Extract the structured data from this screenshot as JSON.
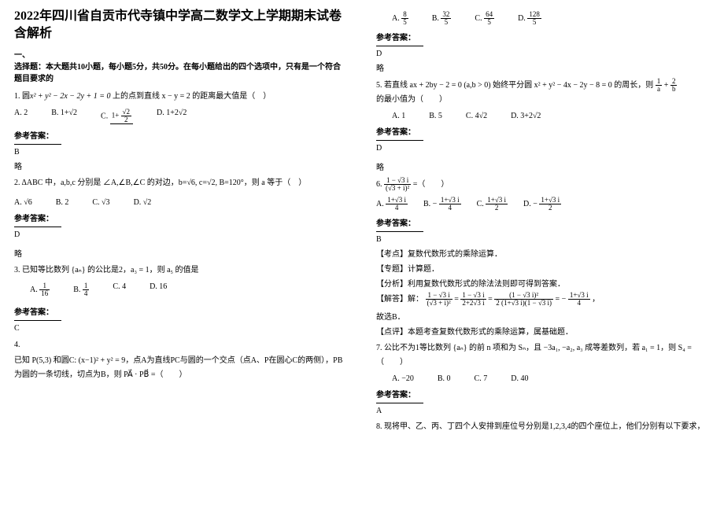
{
  "title": "2022年四川省自贡市代寺镇中学高二数学文上学期期末试卷含解析",
  "section1_head": "一、\n选择题：本大题共10小题，每小题5分，共50分。在每小题给出的四个选项中，只有是一个符合题目要求的",
  "q1": {
    "stem_pre": "1. 圆",
    "stem_eq": "x² + y² − 2x − 2y + 1 = 0",
    "stem_post": "上的点到直线 x − y = 2 的距离最大值是（　）",
    "A": "A. 2",
    "B": "B. 1+√2",
    "C_pre": "C. ",
    "C_frac_n": "1+ (√2)/2",
    "D": "D. 1+2√2"
  },
  "ans_label": "参考答案：",
  "q1_ans": "B",
  "lve": "略",
  "q2": {
    "stem": "2. ΔABC 中，a,b,c 分别是 ∠A,∠B,∠C 的对边，b=√6, c=√2, B=120°，则 a 等于（　）",
    "A": "A. √6",
    "B": "B. 2",
    "C": "C. √3",
    "D": "D. √2"
  },
  "q2_ans": "D",
  "q3": {
    "stem": "3. 已知等比数列 {aₙ} 的公比是2，a₃ = 1，则 a₅ 的值是",
    "A_n": "1",
    "A_d": "16",
    "B_n": "1",
    "B_d": "4",
    "C": "C.  4",
    "D": "D.  16"
  },
  "q3_ans": "C",
  "q4": {
    "stem": "已知 P(5,3) 和圆C: (x−1)² + y² = 9，点A为直线PC与圆的一个交点（点A、P在圆心C的两侧），PB为圆的一条切线，切点为B，则 PA⃗ · PB⃗ =（　　）"
  },
  "q4opts": {
    "A_n": "8",
    "A_d": "5",
    "B_n": "32",
    "B_d": "5",
    "C_n": "64",
    "C_d": "5",
    "D_n": "128",
    "D_d": "5"
  },
  "q4_ans": "D",
  "q5": {
    "stem_a": "5. 若直线 ax + 2by − 2 = 0 (a,b > 0) 始终平分圆 x² + y² − 4x − 2y − 8 = 0 的周长，则",
    "stem_b": "的最小值为（　　）",
    "frac1_n": "1",
    "frac1_d": "a",
    "plus": " + ",
    "frac2_n": "2",
    "frac2_d": "b",
    "A": "A.  1",
    "B": "B.  5",
    "C": "C.  4√2",
    "D": "D.  3+2√2"
  },
  "q5_ans": "D",
  "q6": {
    "stem_pre": "6. ",
    "main_n": "1 − √3 i",
    "main_d": "(√3 + i)²",
    "eq": " =（　　）",
    "A_n": "1+√3 i",
    "A_d": "4",
    "B_n": "1+√3 i",
    "B_d": "4",
    "B_sign": "− ",
    "C_n": "1+√3 i",
    "C_d": "2",
    "D_n": "1+√3 i",
    "D_d": "2",
    "D_sign": "− "
  },
  "q6_ans": "B",
  "q6_exp": {
    "l1": "【考点】复数代数形式的乘除运算．",
    "l2": "【专题】计算题．",
    "l3": "【分析】利用复数代数形式的除法法则即可得到答案．",
    "l4a": "【解答】解：",
    "l4_eqn1_n": "1 − √3 i",
    "l4_eqn1_d": "(√3 + i)²",
    "l4_mid": " = ",
    "l4_eqn2_n": "1 − √3 i",
    "l4_eqn2_d": "2+2√3 i",
    "l4_mid2": " = ",
    "l4_eqn3_n": "(1 − √3 i)²",
    "l4_eqn3_d": "2 (1+√3 i)(1 − √3 i)",
    "l4_mid3": " = − ",
    "l4_eqn4_n": "1+√3 i",
    "l4_eqn4_d": "4",
    "l4_end": "，",
    "l5": "故选B．",
    "l6": "【点评】本题考查复数代数形式的乘除运算，属基础题．"
  },
  "q7": {
    "stem": "7. 公比不为1等比数列 {aₙ} 的前 n 项和为 Sₙ，且 −3a₁, −a₂, a₃ 成等差数列，若 a₁ = 1，则 S₄ =（　　）",
    "A": "A. −20",
    "B": "B. 0",
    "C": "C. 7",
    "D": "D. 40"
  },
  "q7_ans": "A",
  "q8": {
    "stem": "8. 现将甲、乙、丙、丁四个人安排到座位号分别是1,2,3,4的四个座位上，他们分别有以下要求，"
  }
}
